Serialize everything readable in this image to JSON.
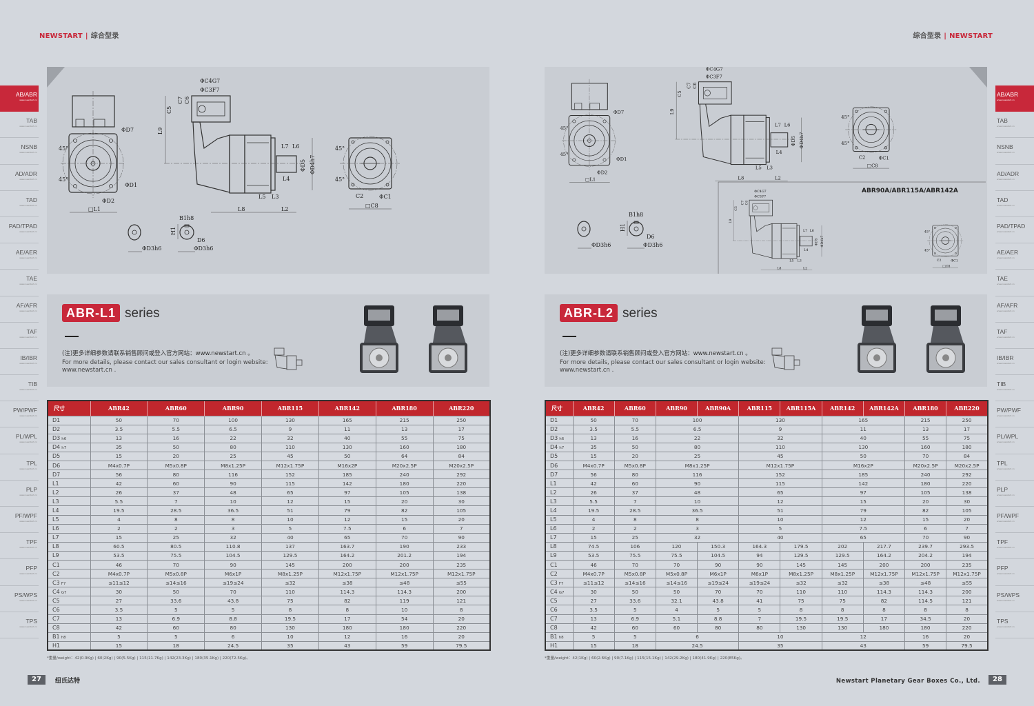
{
  "header": {
    "left": {
      "brand": "NEWSTART",
      "sep": "|",
      "catalog": "综合型录"
    },
    "right": {
      "brand": "NEWSTART",
      "sep": "|",
      "catalog": "综合型录"
    }
  },
  "sidebar": {
    "url": "www.newstart.cn",
    "active": "AB/ABR",
    "items": [
      "AB/ABR",
      "TAB",
      "NSNB",
      "AD/ADR",
      "TAD",
      "PAD/TPAD",
      "AE/AER",
      "TAE",
      "AF/AFR",
      "TAF",
      "IB/IBR",
      "TIB",
      "PW/PWF",
      "PL/WPL",
      "TPL",
      "PLP",
      "PF/WPF",
      "TPF",
      "PFP",
      "PS/WPS",
      "TPS"
    ]
  },
  "colors": {
    "accent": "#c8283a",
    "table_header": "#c1272d",
    "page_bg": "#d3d7dd",
    "panel_bg": "#c9cdd3"
  },
  "drawing_labels": {
    "c4": "ΦC4G7",
    "c3": "ΦC3F7",
    "c7": "C7",
    "c6": "C6",
    "c5": "C5",
    "l9": "L9",
    "d7": "ΦD7",
    "deg": "45°",
    "d1": "ΦD1",
    "d2": "ΦD2",
    "l1": "□L1",
    "l7": "L7",
    "l6": "L6",
    "d5": "ΦD5",
    "d4": "ΦD4h7",
    "l4": "L4",
    "l5": "L5",
    "l3": "L3",
    "l8": "L8",
    "l2": "L2",
    "c2": "C2",
    "c1": "ΦC1",
    "c8": "□C8",
    "b1": "B1h8",
    "h1": "H1",
    "d6": "D6",
    "d3": "ΦD3h6"
  },
  "variant_caption": "ABR90A/ABR115A/ABR142A",
  "left_page": {
    "series_code": "ABR-L1",
    "series_word": "series",
    "note_cn": "(注)更多详细参数请联系销售顾问或登入官方网站：www.newstart.cn 。",
    "note_en": "For more details, please contact our sales consultant or login website: www.newstart.cn .",
    "table": {
      "corner": "尺寸",
      "columns": [
        "ABR42",
        "ABR60",
        "ABR90",
        "ABR115",
        "ABR142",
        "ABR180",
        "ABR220"
      ],
      "rows": [
        {
          "label": "D1",
          "sub": "",
          "values": [
            "50",
            "70",
            "100",
            "130",
            "165",
            "215",
            "250"
          ]
        },
        {
          "label": "D2",
          "sub": "",
          "values": [
            "3.5",
            "5.5",
            "6.5",
            "9",
            "11",
            "13",
            "17"
          ]
        },
        {
          "label": "D3",
          "sub": "h6",
          "values": [
            "13",
            "16",
            "22",
            "32",
            "40",
            "55",
            "75"
          ]
        },
        {
          "label": "D4",
          "sub": "h7",
          "values": [
            "35",
            "50",
            "80",
            "110",
            "130",
            "160",
            "180"
          ]
        },
        {
          "label": "D5",
          "sub": "",
          "values": [
            "15",
            "20",
            "25",
            "45",
            "50",
            "64",
            "84"
          ]
        },
        {
          "label": "D6",
          "sub": "",
          "values": [
            "M4x0.7P",
            "M5x0.8P",
            "M8x1.25P",
            "M12x1.75P",
            "M16x2P",
            "M20x2.5P",
            "M20x2.5P"
          ]
        },
        {
          "label": "D7",
          "sub": "",
          "values": [
            "56",
            "80",
            "116",
            "152",
            "185",
            "240",
            "292"
          ]
        },
        {
          "label": "L1",
          "sub": "",
          "values": [
            "42",
            "60",
            "90",
            "115",
            "142",
            "180",
            "220"
          ]
        },
        {
          "label": "L2",
          "sub": "",
          "values": [
            "26",
            "37",
            "48",
            "65",
            "97",
            "105",
            "138"
          ]
        },
        {
          "label": "L3",
          "sub": "",
          "values": [
            "5.5",
            "7",
            "10",
            "12",
            "15",
            "20",
            "30"
          ]
        },
        {
          "label": "L4",
          "sub": "",
          "values": [
            "19.5",
            "28.5",
            "36.5",
            "51",
            "79",
            "82",
            "105"
          ]
        },
        {
          "label": "L5",
          "sub": "",
          "values": [
            "4",
            "8",
            "8",
            "10",
            "12",
            "15",
            "20"
          ]
        },
        {
          "label": "L6",
          "sub": "",
          "values": [
            "2",
            "2",
            "3",
            "5",
            "7.5",
            "6",
            "7"
          ]
        },
        {
          "label": "L7",
          "sub": "",
          "values": [
            "15",
            "25",
            "32",
            "40",
            "65",
            "70",
            "90"
          ]
        },
        {
          "label": "L8",
          "sub": "",
          "values": [
            "60.5",
            "80.5",
            "110.8",
            "137",
            "163.7",
            "190",
            "233"
          ]
        },
        {
          "label": "L9",
          "sub": "",
          "values": [
            "53.5",
            "75.5",
            "104.5",
            "129.5",
            "164.2",
            "201.2",
            "194"
          ]
        },
        {
          "label": "C1",
          "sub": "",
          "values": [
            "46",
            "70",
            "90",
            "145",
            "200",
            "200",
            "235"
          ]
        },
        {
          "label": "C2",
          "sub": "",
          "values": [
            "M4x0.7P",
            "M5x0.8P",
            "M6x1P",
            "M8x1.25P",
            "M12x1.75P",
            "M12x1.75P",
            "M12x1.75P"
          ]
        },
        {
          "label": "C3",
          "sub": "F7",
          "values": [
            "≤11≤12",
            "≤14≤16",
            "≤19≤24",
            "≤32",
            "≤38",
            "≤48",
            "≤55"
          ]
        },
        {
          "label": "C4",
          "sub": "G7",
          "values": [
            "30",
            "50",
            "70",
            "110",
            "114.3",
            "114.3",
            "200"
          ]
        },
        {
          "label": "C5",
          "sub": "",
          "values": [
            "27",
            "33.6",
            "43.8",
            "75",
            "82",
            "119",
            "121"
          ]
        },
        {
          "label": "C6",
          "sub": "",
          "values": [
            "3.5",
            "5",
            "5",
            "8",
            "8",
            "10",
            "8"
          ]
        },
        {
          "label": "C7",
          "sub": "",
          "values": [
            "13",
            "6.9",
            "8.8",
            "19.5",
            "17",
            "54",
            "20"
          ]
        },
        {
          "label": "C8",
          "sub": "",
          "values": [
            "42",
            "60",
            "80",
            "130",
            "180",
            "180",
            "220"
          ]
        },
        {
          "label": "B1",
          "sub": "h8",
          "values": [
            "5",
            "5",
            "6",
            "10",
            "12",
            "16",
            "20"
          ]
        },
        {
          "label": "H1",
          "sub": "",
          "values": [
            "15",
            "18",
            "24.5",
            "35",
            "43",
            "59",
            "79.5"
          ]
        }
      ]
    },
    "weight_note": "*重量/weight：42(0.9Kg) | 60(2Kg) | 90(5.5Kg) | 115(11.7Kg) | 142(23.3Kg) | 180(35.1Kg) | 220(72.5Kg)。",
    "page_number": "27",
    "footer_text": "纽氏达特"
  },
  "right_page": {
    "series_code": "ABR-L2",
    "series_word": "series",
    "note_cn": "(注)更多详细参数请联系销售顾问或登入官方网站：www.newstart.cn 。",
    "note_en": "For more details, please contact our sales consultant or login website: www.newstart.cn .",
    "table": {
      "corner": "尺寸",
      "columns": [
        "ABR42",
        "ABR60",
        "ABR90",
        "ABR90A",
        "ABR115",
        "ABR115A",
        "ABR142",
        "ABR142A",
        "ABR180",
        "ABR220"
      ],
      "rows": [
        {
          "label": "D1",
          "sub": "",
          "values": [
            "50",
            "70",
            "100",
            "130",
            "165",
            "215",
            "250"
          ]
        },
        {
          "label": "D2",
          "sub": "",
          "values": [
            "3.5",
            "5.5",
            "6.5",
            "9",
            "11",
            "13",
            "17"
          ]
        },
        {
          "label": "D3",
          "sub": "h6",
          "values": [
            "13",
            "16",
            "22",
            "32",
            "40",
            "55",
            "75"
          ]
        },
        {
          "label": "D4",
          "sub": "h7",
          "values": [
            "35",
            "50",
            "80",
            "110",
            "130",
            "160",
            "180"
          ]
        },
        {
          "label": "D5",
          "sub": "",
          "values": [
            "15",
            "20",
            "25",
            "45",
            "50",
            "70",
            "84"
          ]
        },
        {
          "label": "D6",
          "sub": "",
          "values": [
            "M4x0.7P",
            "M5x0.8P",
            "M8x1.25P",
            "M12x1.75P",
            "M16x2P",
            "M20x2.5P",
            "M20x2.5P"
          ]
        },
        {
          "label": "D7",
          "sub": "",
          "values": [
            "56",
            "80",
            "116",
            "152",
            "185",
            "240",
            "292"
          ]
        },
        {
          "label": "L1",
          "sub": "",
          "values": [
            "42",
            "60",
            "90",
            "115",
            "142",
            "180",
            "220"
          ]
        },
        {
          "label": "L2",
          "sub": "",
          "values": [
            "26",
            "37",
            "48",
            "65",
            "97",
            "105",
            "138"
          ]
        },
        {
          "label": "L3",
          "sub": "",
          "values": [
            "5.5",
            "7",
            "10",
            "12",
            "15",
            "20",
            "30"
          ]
        },
        {
          "label": "L4",
          "sub": "",
          "values": [
            "19.5",
            "28.5",
            "36.5",
            "51",
            "79",
            "82",
            "105"
          ]
        },
        {
          "label": "L5",
          "sub": "",
          "values": [
            "4",
            "8",
            "8",
            "10",
            "12",
            "15",
            "20"
          ]
        },
        {
          "label": "L6",
          "sub": "",
          "values": [
            "2",
            "2",
            "3",
            "5",
            "7.5",
            "6",
            "7"
          ]
        },
        {
          "label": "L7",
          "sub": "",
          "values": [
            "15",
            "25",
            "32",
            "40",
            "65",
            "70",
            "90"
          ]
        },
        {
          "label": "L8",
          "sub": "",
          "values": [
            "74.5",
            "106",
            "120",
            "150.3",
            "164.3",
            "179.5",
            "202",
            "217.7",
            "239.7",
            "293.5"
          ]
        },
        {
          "label": "L9",
          "sub": "",
          "values": [
            "53.5",
            "75.5",
            "75.5",
            "104.5",
            "94",
            "129.5",
            "129.5",
            "164.2",
            "204.2",
            "194"
          ]
        },
        {
          "label": "C1",
          "sub": "",
          "values": [
            "46",
            "70",
            "70",
            "90",
            "90",
            "145",
            "145",
            "200",
            "200",
            "235"
          ]
        },
        {
          "label": "C2",
          "sub": "",
          "values": [
            "M4x0.7P",
            "M5x0.8P",
            "M5x0.8P",
            "M6x1P",
            "M6x1P",
            "M8x1.25P",
            "M8x1.25P",
            "M12x1.75P",
            "M12x1.75P",
            "M12x1.75P"
          ]
        },
        {
          "label": "C3",
          "sub": "F7",
          "values": [
            "≤11≤12",
            "≤14≤16",
            "≤14≤16",
            "≤19≤24",
            "≤19≤24",
            "≤32",
            "≤32",
            "≤38",
            "≤48",
            "≤55"
          ]
        },
        {
          "label": "C4",
          "sub": "G7",
          "values": [
            "30",
            "50",
            "50",
            "70",
            "70",
            "110",
            "110",
            "114.3",
            "114.3",
            "200"
          ]
        },
        {
          "label": "C5",
          "sub": "",
          "values": [
            "27",
            "33.6",
            "32.1",
            "43.8",
            "41",
            "75",
            "75",
            "82",
            "114.5",
            "121"
          ]
        },
        {
          "label": "C6",
          "sub": "",
          "values": [
            "3.5",
            "5",
            "4",
            "5",
            "5",
            "8",
            "8",
            "8",
            "8",
            "8"
          ]
        },
        {
          "label": "C7",
          "sub": "",
          "values": [
            "13",
            "6.9",
            "5.1",
            "8.8",
            "7",
            "19.5",
            "19.5",
            "17",
            "34.5",
            "20"
          ]
        },
        {
          "label": "C8",
          "sub": "",
          "values": [
            "42",
            "60",
            "60",
            "80",
            "80",
            "130",
            "130",
            "180",
            "180",
            "220"
          ]
        },
        {
          "label": "B1",
          "sub": "h8",
          "values": [
            "5",
            "5",
            "6",
            "10",
            "12",
            "16",
            "20"
          ]
        },
        {
          "label": "H1",
          "sub": "",
          "values": [
            "15",
            "18",
            "24.5",
            "35",
            "43",
            "59",
            "79.5"
          ]
        }
      ]
    },
    "weight_note": "*重量/weight：42(1Kg) | 60(2.6Kg) | 90(7.1Kg) | 115(15.1Kg) | 142(29.2Kg) | 180(41.9Kg) | 220(85Kg)。",
    "page_number": "28",
    "footer_text": "Newstart Planetary Gear Boxes Co., Ltd."
  }
}
